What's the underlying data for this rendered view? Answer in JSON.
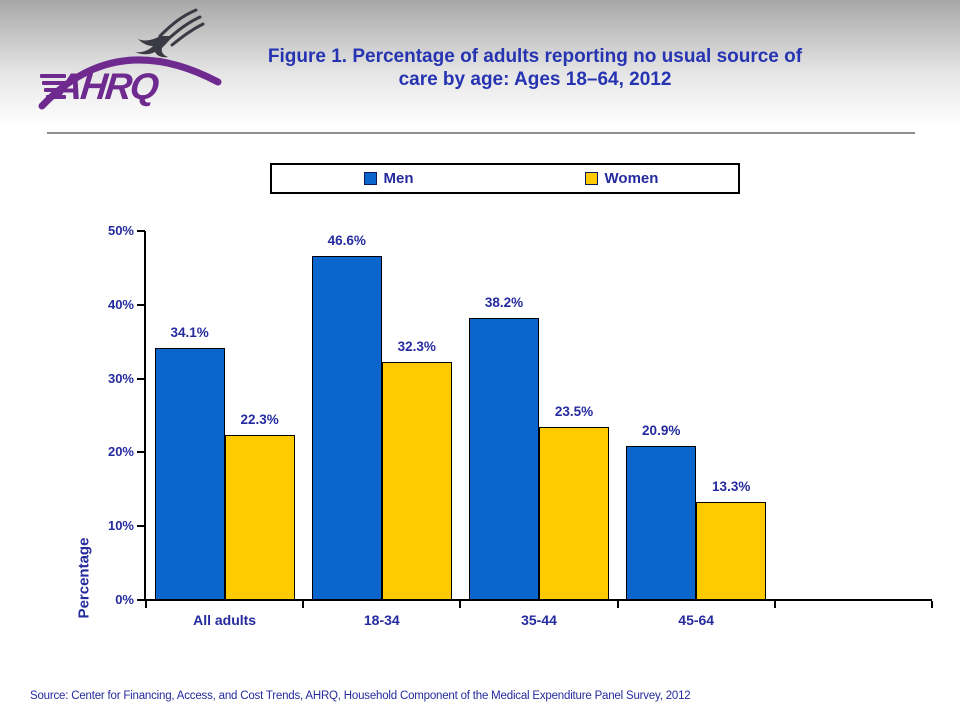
{
  "header": {
    "logo": {
      "text": "AHRQ",
      "color": "#6f2a8f",
      "eagle_color": "#3a3a44"
    },
    "title_line1": "Figure 1. Percentage of adults reporting no usual source of",
    "title_line2": "care by age: Ages 18–64, 2012",
    "title_color": "#2634b2"
  },
  "legend": {
    "items": [
      {
        "label": "Men",
        "color": "#0c64cd"
      },
      {
        "label": "Women",
        "color": "#ffca00"
      }
    ]
  },
  "chart_data": {
    "type": "bar",
    "title": "Figure 1. Percentage of adults reporting no usual source of care by age: Ages 18–64, 2012",
    "categories": [
      "All adults",
      "18-34",
      "35-44",
      "45-64"
    ],
    "series": [
      {
        "name": "Men",
        "color": "#0c64cd",
        "values": [
          34.1,
          46.6,
          38.2,
          20.9
        ]
      },
      {
        "name": "Women",
        "color": "#ffca00",
        "values": [
          22.3,
          32.3,
          23.5,
          13.3
        ]
      }
    ],
    "xlabel": "",
    "ylabel": "Percentage",
    "ylim": [
      0,
      50
    ],
    "yticks": [
      "0%",
      "10%",
      "20%",
      "30%",
      "40%",
      "50%"
    ],
    "data_label_suffix": "%",
    "grid": false,
    "legend_position": "top",
    "text_color": "#252b9e"
  },
  "footer": {
    "source": "Source: Center for Financing, Access, and Cost Trends, AHRQ, Household Component of the Medical Expenditure Panel Survey,  2012"
  }
}
